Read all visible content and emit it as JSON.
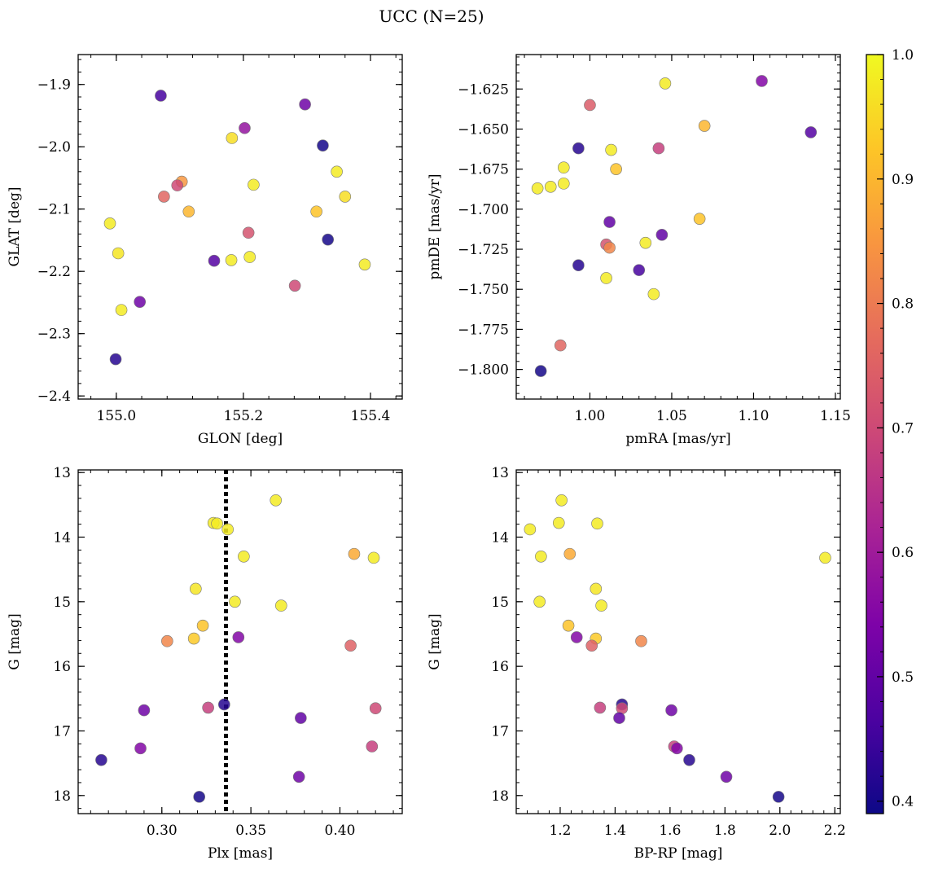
{
  "figure": {
    "title": "UCC (N=25)"
  },
  "colorbar": {
    "colormap": "plasma",
    "range": [
      0.39,
      1.0
    ],
    "ticks": [
      0.4,
      0.5,
      0.6,
      0.7,
      0.8,
      0.9,
      1.0
    ],
    "tick_labels": [
      "0.4",
      "0.5",
      "0.6",
      "0.7",
      "0.8",
      "0.9",
      "1.0"
    ]
  },
  "chart_data": [
    {
      "type": "scatter",
      "xlabel": "GLON [deg]",
      "ylabel": "GLAT [deg]",
      "xlim": [
        154.94,
        155.45
      ],
      "ylim": [
        -2.405,
        -1.852
      ],
      "xticks": [
        155.0,
        155.2,
        155.4
      ],
      "xtick_labels": [
        "155.0",
        "155.2",
        "155.4"
      ],
      "yticks": [
        -2.4,
        -2.3,
        -2.2,
        -2.1,
        -2.0,
        -1.9
      ],
      "ytick_labels": [
        "−2.4",
        "−2.3",
        "−2.2",
        "−2.1",
        "−2.0",
        "−1.9"
      ],
      "points": [
        {
          "x": 155.07,
          "y": -1.918,
          "c": 0.46
        },
        {
          "x": 155.297,
          "y": -1.932,
          "c": 0.52
        },
        {
          "x": 155.202,
          "y": -1.97,
          "c": 0.58
        },
        {
          "x": 155.182,
          "y": -1.986,
          "c": 0.96
        },
        {
          "x": 155.325,
          "y": -1.998,
          "c": 0.4
        },
        {
          "x": 155.347,
          "y": -2.04,
          "c": 0.98
        },
        {
          "x": 155.103,
          "y": -2.056,
          "c": 0.85
        },
        {
          "x": 155.216,
          "y": -2.061,
          "c": 0.98
        },
        {
          "x": 155.096,
          "y": -2.062,
          "c": 0.7
        },
        {
          "x": 155.075,
          "y": -2.08,
          "c": 0.76
        },
        {
          "x": 155.36,
          "y": -2.08,
          "c": 0.96
        },
        {
          "x": 155.114,
          "y": -2.104,
          "c": 0.9
        },
        {
          "x": 155.315,
          "y": -2.104,
          "c": 0.92
        },
        {
          "x": 154.99,
          "y": -2.123,
          "c": 0.98
        },
        {
          "x": 155.208,
          "y": -2.138,
          "c": 0.72
        },
        {
          "x": 155.333,
          "y": -2.149,
          "c": 0.4
        },
        {
          "x": 155.003,
          "y": -2.171,
          "c": 0.97
        },
        {
          "x": 155.21,
          "y": -2.177,
          "c": 0.98
        },
        {
          "x": 155.154,
          "y": -2.183,
          "c": 0.48
        },
        {
          "x": 155.181,
          "y": -2.182,
          "c": 0.98
        },
        {
          "x": 155.391,
          "y": -2.189,
          "c": 0.98
        },
        {
          "x": 155.281,
          "y": -2.223,
          "c": 0.7
        },
        {
          "x": 155.037,
          "y": -2.249,
          "c": 0.52
        },
        {
          "x": 155.008,
          "y": -2.262,
          "c": 0.98
        },
        {
          "x": 154.999,
          "y": -2.341,
          "c": 0.42
        }
      ]
    },
    {
      "type": "scatter",
      "xlabel": "pmRA [mas/yr]",
      "ylabel": "pmDE [mas/yr]",
      "xlim": [
        0.955,
        1.153
      ],
      "ylim": [
        -1.8185,
        -1.6035
      ],
      "xticks": [
        1.0,
        1.05,
        1.1,
        1.15
      ],
      "xtick_labels": [
        "1.00",
        "1.05",
        "1.10",
        "1.15"
      ],
      "yticks": [
        -1.8,
        -1.775,
        -1.75,
        -1.725,
        -1.7,
        -1.675,
        -1.65,
        -1.625
      ],
      "ytick_labels": [
        "−1.800",
        "−1.775",
        "−1.750",
        "−1.725",
        "−1.700",
        "−1.675",
        "−1.650",
        "−1.625"
      ],
      "points": [
        {
          "x": 1.046,
          "y": -1.6215,
          "c": 0.98
        },
        {
          "x": 1.105,
          "y": -1.62,
          "c": 0.55
        },
        {
          "x": 1.0,
          "y": -1.635,
          "c": 0.74
        },
        {
          "x": 1.07,
          "y": -1.648,
          "c": 0.9
        },
        {
          "x": 1.135,
          "y": -1.652,
          "c": 0.48
        },
        {
          "x": 0.993,
          "y": -1.662,
          "c": 0.42
        },
        {
          "x": 1.013,
          "y": -1.663,
          "c": 0.98
        },
        {
          "x": 1.042,
          "y": -1.662,
          "c": 0.68
        },
        {
          "x": 0.984,
          "y": -1.674,
          "c": 0.98
        },
        {
          "x": 1.016,
          "y": -1.675,
          "c": 0.92
        },
        {
          "x": 0.968,
          "y": -1.687,
          "c": 0.98
        },
        {
          "x": 0.976,
          "y": -1.686,
          "c": 0.98
        },
        {
          "x": 0.984,
          "y": -1.684,
          "c": 0.98
        },
        {
          "x": 1.067,
          "y": -1.706,
          "c": 0.92
        },
        {
          "x": 1.012,
          "y": -1.708,
          "c": 0.5
        },
        {
          "x": 1.044,
          "y": -1.716,
          "c": 0.5
        },
        {
          "x": 1.01,
          "y": -1.722,
          "c": 0.72
        },
        {
          "x": 1.012,
          "y": -1.724,
          "c": 0.82
        },
        {
          "x": 1.034,
          "y": -1.721,
          "c": 0.98
        },
        {
          "x": 0.993,
          "y": -1.735,
          "c": 0.42
        },
        {
          "x": 1.03,
          "y": -1.738,
          "c": 0.46
        },
        {
          "x": 1.01,
          "y": -1.743,
          "c": 0.98
        },
        {
          "x": 1.039,
          "y": -1.753,
          "c": 0.98
        },
        {
          "x": 0.982,
          "y": -1.785,
          "c": 0.76
        },
        {
          "x": 0.97,
          "y": -1.801,
          "c": 0.4
        }
      ]
    },
    {
      "type": "scatter",
      "xlabel": "Plx [mas]",
      "ylabel": "G [mag]",
      "xlim": [
        0.253,
        0.435
      ],
      "ylim": [
        18.28,
        12.96
      ],
      "xticks": [
        0.3,
        0.35,
        0.4
      ],
      "xtick_labels": [
        "0.30",
        "0.35",
        "0.40"
      ],
      "yticks": [
        13,
        14,
        15,
        16,
        17,
        18
      ],
      "ytick_labels": [
        "13",
        "14",
        "15",
        "16",
        "17",
        "18"
      ],
      "vline": 0.336,
      "points": [
        {
          "x": 0.364,
          "y": 13.43,
          "c": 0.98
        },
        {
          "x": 0.329,
          "y": 13.78,
          "c": 0.98
        },
        {
          "x": 0.331,
          "y": 13.79,
          "c": 0.98
        },
        {
          "x": 0.337,
          "y": 13.88,
          "c": 0.98
        },
        {
          "x": 0.408,
          "y": 14.26,
          "c": 0.88
        },
        {
          "x": 0.346,
          "y": 14.3,
          "c": 0.98
        },
        {
          "x": 0.419,
          "y": 14.32,
          "c": 0.98
        },
        {
          "x": 0.319,
          "y": 14.8,
          "c": 0.97
        },
        {
          "x": 0.341,
          "y": 15.0,
          "c": 0.98
        },
        {
          "x": 0.367,
          "y": 15.06,
          "c": 0.98
        },
        {
          "x": 0.323,
          "y": 15.37,
          "c": 0.92
        },
        {
          "x": 0.318,
          "y": 15.57,
          "c": 0.93
        },
        {
          "x": 0.343,
          "y": 15.55,
          "c": 0.55
        },
        {
          "x": 0.303,
          "y": 15.61,
          "c": 0.82
        },
        {
          "x": 0.406,
          "y": 15.68,
          "c": 0.75
        },
        {
          "x": 0.335,
          "y": 16.59,
          "c": 0.42
        },
        {
          "x": 0.326,
          "y": 16.64,
          "c": 0.68
        },
        {
          "x": 0.42,
          "y": 16.65,
          "c": 0.7
        },
        {
          "x": 0.29,
          "y": 16.68,
          "c": 0.52
        },
        {
          "x": 0.378,
          "y": 16.8,
          "c": 0.5
        },
        {
          "x": 0.418,
          "y": 17.24,
          "c": 0.68
        },
        {
          "x": 0.288,
          "y": 17.27,
          "c": 0.55
        },
        {
          "x": 0.266,
          "y": 17.45,
          "c": 0.42
        },
        {
          "x": 0.377,
          "y": 17.71,
          "c": 0.52
        },
        {
          "x": 0.321,
          "y": 18.02,
          "c": 0.4
        }
      ]
    },
    {
      "type": "scatter",
      "xlabel": "BP-RP [mag]",
      "ylabel": "G [mag]",
      "xlim": [
        1.04,
        2.22
      ],
      "ylim": [
        18.28,
        12.96
      ],
      "xticks": [
        1.2,
        1.4,
        1.6,
        1.8,
        2.0,
        2.2
      ],
      "xtick_labels": [
        "1.2",
        "1.4",
        "1.6",
        "1.8",
        "2.0",
        "2.2"
      ],
      "yticks": [
        13,
        14,
        15,
        16,
        17,
        18
      ],
      "ytick_labels": [
        "13",
        "14",
        "15",
        "16",
        "17",
        "18"
      ],
      "points": [
        {
          "x": 1.205,
          "y": 13.43,
          "c": 0.98
        },
        {
          "x": 1.195,
          "y": 13.78,
          "c": 0.98
        },
        {
          "x": 1.335,
          "y": 13.79,
          "c": 0.98
        },
        {
          "x": 1.09,
          "y": 13.88,
          "c": 0.98
        },
        {
          "x": 1.235,
          "y": 14.26,
          "c": 0.88
        },
        {
          "x": 1.13,
          "y": 14.3,
          "c": 0.98
        },
        {
          "x": 2.165,
          "y": 14.32,
          "c": 0.98
        },
        {
          "x": 1.33,
          "y": 14.8,
          "c": 0.97
        },
        {
          "x": 1.125,
          "y": 15.0,
          "c": 0.98
        },
        {
          "x": 1.35,
          "y": 15.06,
          "c": 0.98
        },
        {
          "x": 1.23,
          "y": 15.37,
          "c": 0.92
        },
        {
          "x": 1.33,
          "y": 15.57,
          "c": 0.93
        },
        {
          "x": 1.26,
          "y": 15.55,
          "c": 0.55
        },
        {
          "x": 1.495,
          "y": 15.61,
          "c": 0.82
        },
        {
          "x": 1.315,
          "y": 15.68,
          "c": 0.75
        },
        {
          "x": 1.425,
          "y": 16.59,
          "c": 0.42
        },
        {
          "x": 1.345,
          "y": 16.64,
          "c": 0.68
        },
        {
          "x": 1.425,
          "y": 16.65,
          "c": 0.7
        },
        {
          "x": 1.605,
          "y": 16.68,
          "c": 0.52
        },
        {
          "x": 1.415,
          "y": 16.8,
          "c": 0.5
        },
        {
          "x": 1.615,
          "y": 17.24,
          "c": 0.68
        },
        {
          "x": 1.625,
          "y": 17.27,
          "c": 0.55
        },
        {
          "x": 1.67,
          "y": 17.45,
          "c": 0.42
        },
        {
          "x": 1.805,
          "y": 17.71,
          "c": 0.52
        },
        {
          "x": 1.995,
          "y": 18.02,
          "c": 0.4
        }
      ]
    }
  ]
}
